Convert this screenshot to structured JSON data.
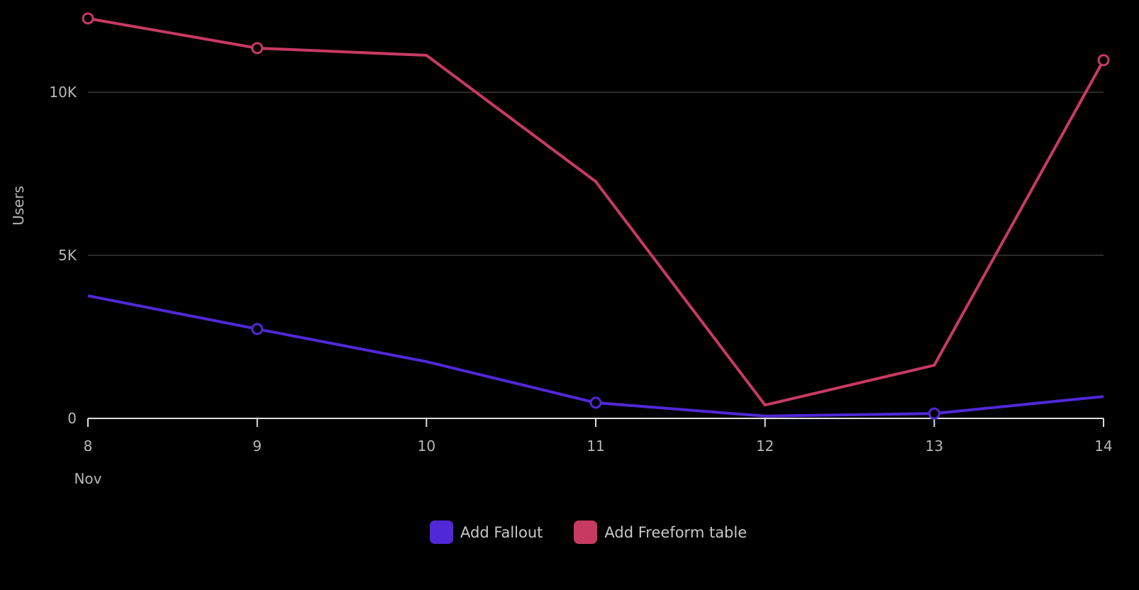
{
  "chart_data": {
    "type": "line",
    "title": "",
    "xlabel": "",
    "ylabel": "Users",
    "x": [
      "8",
      "9",
      "10",
      "11",
      "12",
      "13",
      "14"
    ],
    "x_sublabel": "Nov",
    "ylim": [
      0,
      12500
    ],
    "yticks": [
      {
        "value": 0,
        "label": "0"
      },
      {
        "value": 5000,
        "label": "5K"
      },
      {
        "value": 10000,
        "label": "10K"
      }
    ],
    "grid": true,
    "legend_position": "bottom",
    "series": [
      {
        "name": "Add Fallout",
        "color": "#5128d8",
        "values": [
          3760,
          2740,
          1740,
          480,
          70,
          150,
          670
        ],
        "markers": [
          1,
          3,
          5
        ]
      },
      {
        "name": "Add Freeform table",
        "color": "#c83a62",
        "values": [
          12260,
          11350,
          11130,
          7260,
          410,
          1630,
          10980
        ],
        "markers": [
          0,
          1,
          6
        ]
      }
    ]
  }
}
